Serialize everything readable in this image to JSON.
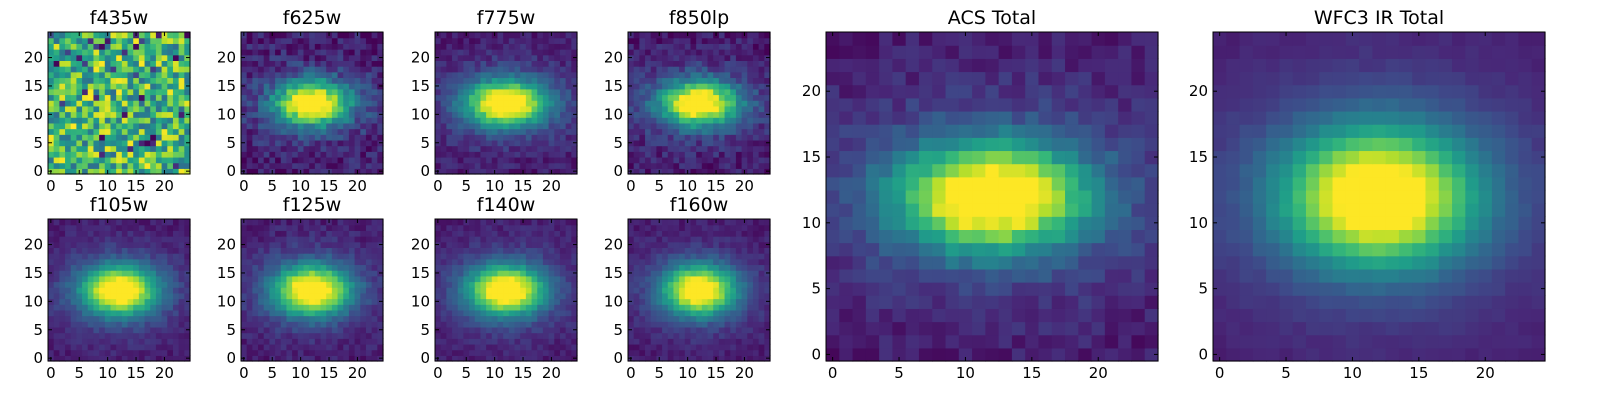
{
  "chart_data": [
    {
      "type": "heatmap",
      "title": "f435w",
      "pattern": "noise",
      "peak": [
        12,
        12
      ],
      "xticks": [
        0,
        5,
        10,
        15,
        20
      ],
      "yticks": [
        0,
        5,
        10,
        15,
        20
      ],
      "xlim": [
        0,
        25
      ],
      "ylim": [
        0,
        25
      ],
      "colormap": "viridis"
    },
    {
      "type": "heatmap",
      "title": "f625w",
      "pattern": "source",
      "peak": [
        12,
        12
      ],
      "xticks": [
        0,
        5,
        10,
        15,
        20
      ],
      "yticks": [
        0,
        5,
        10,
        15,
        20
      ],
      "xlim": [
        0,
        25
      ],
      "ylim": [
        0,
        25
      ],
      "colormap": "viridis"
    },
    {
      "type": "heatmap",
      "title": "f775w",
      "pattern": "source",
      "peak": [
        12,
        12
      ],
      "xticks": [
        0,
        5,
        10,
        15,
        20
      ],
      "yticks": [
        0,
        5,
        10,
        15,
        20
      ],
      "xlim": [
        0,
        25
      ],
      "ylim": [
        0,
        25
      ],
      "colormap": "viridis"
    },
    {
      "type": "heatmap",
      "title": "f850lp",
      "pattern": "source",
      "peak": [
        12,
        12
      ],
      "xticks": [
        0,
        5,
        10,
        15,
        20
      ],
      "yticks": [
        0,
        5,
        10,
        15,
        20
      ],
      "xlim": [
        0,
        25
      ],
      "ylim": [
        0,
        25
      ],
      "colormap": "viridis"
    },
    {
      "type": "heatmap",
      "title": "f105w",
      "pattern": "source",
      "peak": [
        12,
        12
      ],
      "xticks": [
        0,
        5,
        10,
        15,
        20
      ],
      "yticks": [
        0,
        5,
        10,
        15,
        20
      ],
      "xlim": [
        0,
        25
      ],
      "ylim": [
        0,
        25
      ],
      "colormap": "viridis"
    },
    {
      "type": "heatmap",
      "title": "f125w",
      "pattern": "source",
      "peak": [
        12,
        12
      ],
      "xticks": [
        0,
        5,
        10,
        15,
        20
      ],
      "yticks": [
        0,
        5,
        10,
        15,
        20
      ],
      "xlim": [
        0,
        25
      ],
      "ylim": [
        0,
        25
      ],
      "colormap": "viridis"
    },
    {
      "type": "heatmap",
      "title": "f140w",
      "pattern": "source",
      "peak": [
        12,
        12
      ],
      "xticks": [
        0,
        5,
        10,
        15,
        20
      ],
      "yticks": [
        0,
        5,
        10,
        15,
        20
      ],
      "xlim": [
        0,
        25
      ],
      "ylim": [
        0,
        25
      ],
      "colormap": "viridis"
    },
    {
      "type": "heatmap",
      "title": "f160w",
      "pattern": "source",
      "peak": [
        12,
        12
      ],
      "xticks": [
        0,
        5,
        10,
        15,
        20
      ],
      "yticks": [
        0,
        5,
        10,
        15,
        20
      ],
      "xlim": [
        0,
        25
      ],
      "ylim": [
        0,
        25
      ],
      "colormap": "viridis"
    },
    {
      "type": "heatmap",
      "title": "ACS Total",
      "pattern": "source",
      "peak": [
        12,
        12
      ],
      "xticks": [
        0,
        5,
        10,
        15,
        20
      ],
      "yticks": [
        0,
        5,
        10,
        15,
        20
      ],
      "xlim": [
        0,
        25
      ],
      "ylim": [
        0,
        25
      ],
      "colormap": "viridis"
    },
    {
      "type": "heatmap",
      "title": "WFC3 IR Total",
      "pattern": "source",
      "peak": [
        12,
        12
      ],
      "xticks": [
        0,
        5,
        10,
        15,
        20
      ],
      "yticks": [
        0,
        5,
        10,
        15,
        20
      ],
      "xlim": [
        0,
        25
      ],
      "ylim": [
        0,
        25
      ],
      "colormap": "viridis"
    }
  ]
}
